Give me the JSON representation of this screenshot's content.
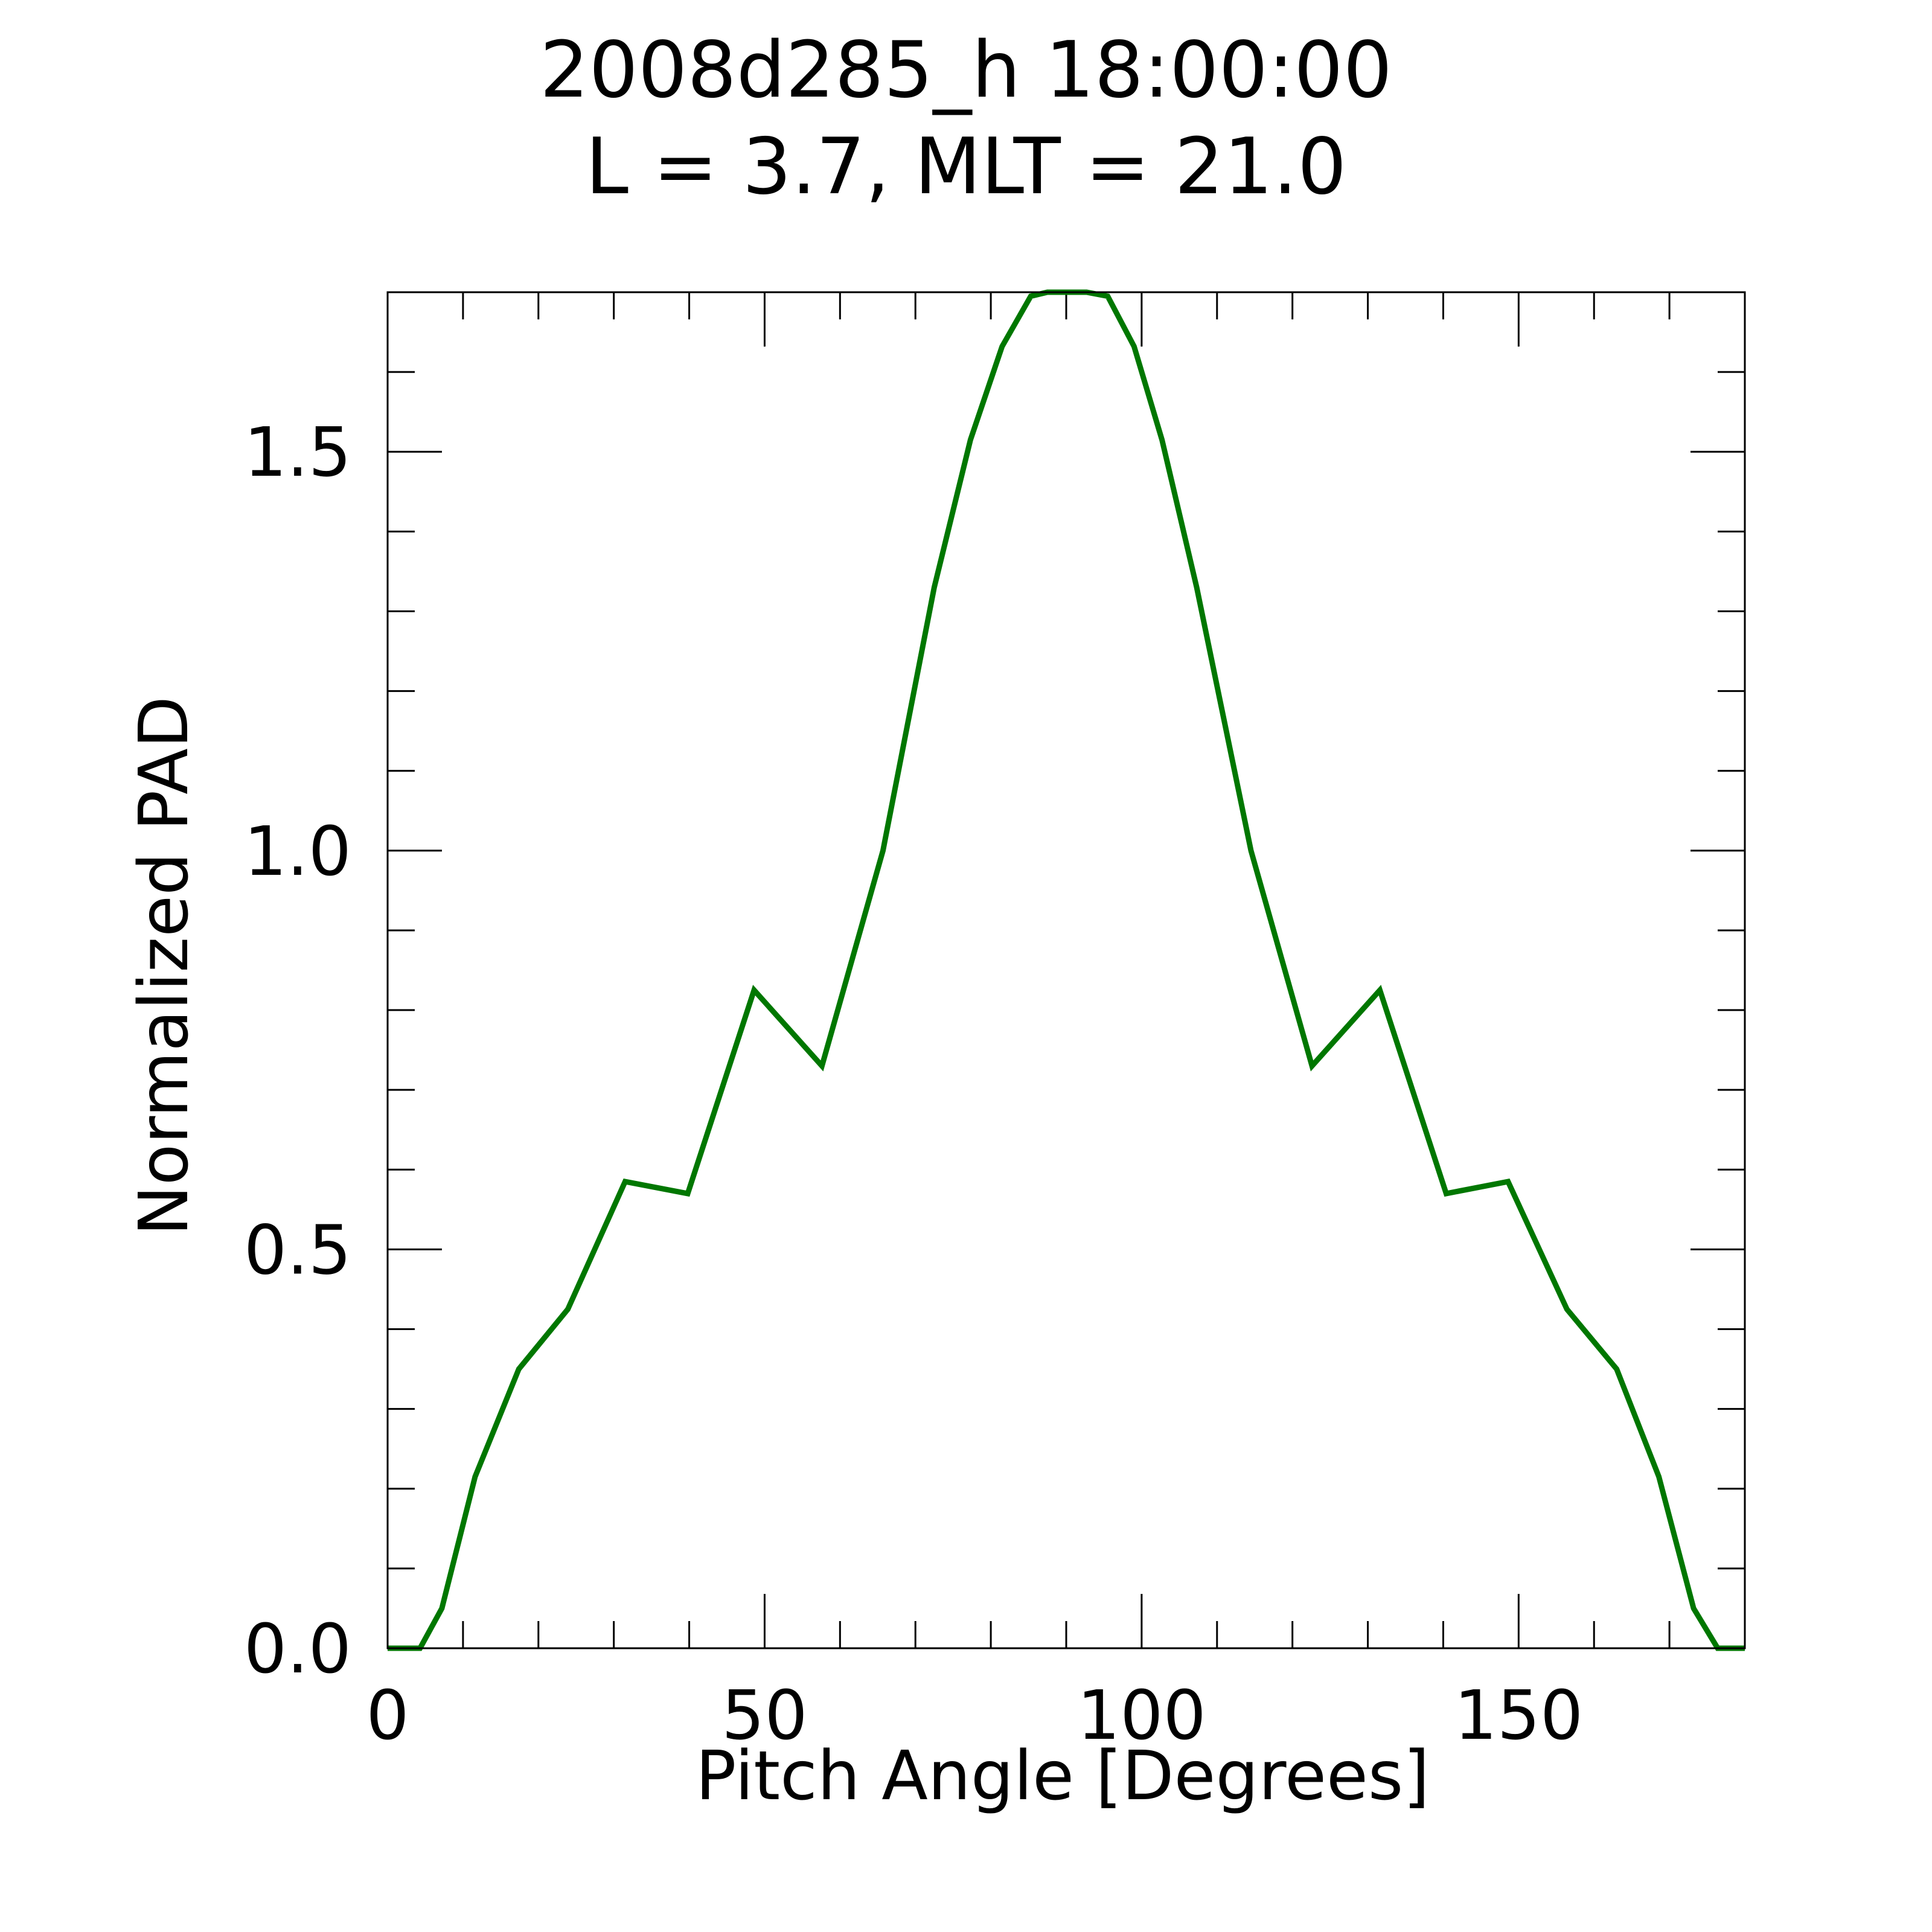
{
  "chart_data": {
    "type": "line",
    "title": "2008d285_h  18:00:00",
    "subtitle": "L = 3.7, MLT = 21.0",
    "xlabel": "Pitch Angle [Degrees]",
    "ylabel": "Normalized PAD",
    "xlim": [
      0,
      180
    ],
    "ylim": [
      0,
      1.7
    ],
    "xticks": [
      0,
      50,
      100,
      150
    ],
    "xtick_labels": [
      "0",
      "50",
      "100",
      "150"
    ],
    "xminor_step": 10,
    "yticks": [
      0.0,
      0.5,
      1.0,
      1.5
    ],
    "ytick_labels": [
      "0.0",
      "0.5",
      "1.0",
      "1.5"
    ],
    "yminor_step": 0.1,
    "grid": false,
    "line_color": "#007700",
    "series": [
      {
        "x": [
          0,
          4.3,
          7.2,
          11.6,
          17.4,
          23.9,
          31.5,
          39.8,
          48.6,
          57.6,
          65.7,
          72.5,
          77.3,
          81.5,
          85.3,
          87.5,
          92.7,
          95.5,
          99.0,
          102.7,
          107.3,
          114.5,
          122.6,
          131.6,
          140.4,
          148.6,
          156.4,
          163.0,
          168.6,
          173.2,
          176.4,
          180
        ],
        "y": [
          0.0,
          0.0,
          0.05,
          0.215,
          0.35,
          0.425,
          0.585,
          0.57,
          0.825,
          0.73,
          1.0,
          1.33,
          1.515,
          1.632,
          1.695,
          1.7,
          1.7,
          1.695,
          1.632,
          1.515,
          1.33,
          1.0,
          0.73,
          0.825,
          0.57,
          0.585,
          0.425,
          0.35,
          0.215,
          0.05,
          0.0,
          0.0
        ]
      }
    ]
  }
}
